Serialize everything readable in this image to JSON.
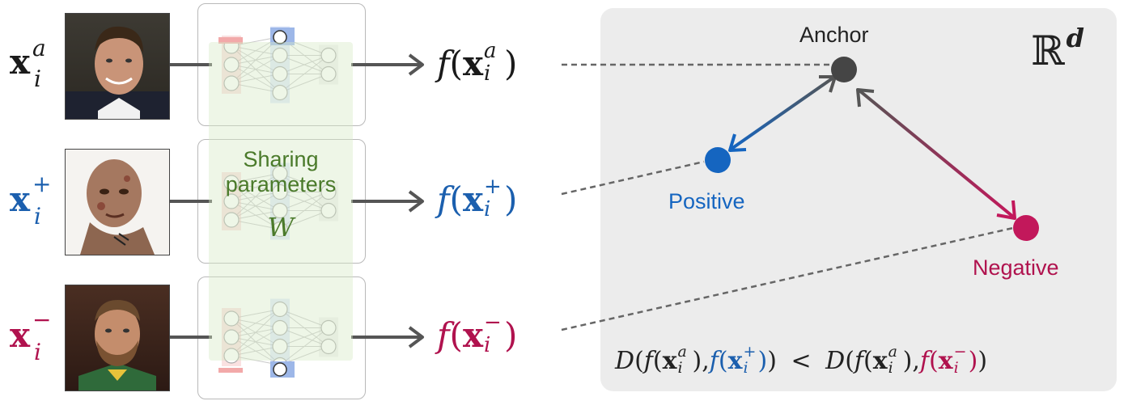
{
  "colors": {
    "anchor": "#1a1a1a",
    "positive": "#1b5fae",
    "negative": "#b0124e",
    "sharing": "#4a7a2a",
    "anchor_point": "#454545",
    "positive_point": "#1565c0",
    "negative_point": "#c2185b"
  },
  "inputs": {
    "anchor": {
      "base": "x",
      "sup": "a",
      "sub": "i"
    },
    "positive": {
      "base": "x",
      "sup": "+",
      "sub": "i"
    },
    "negative": {
      "base": "x",
      "sup": "−",
      "sub": "i"
    }
  },
  "photos": {
    "anchor": "photo-of-smiling-man-anchor",
    "positive": "photo-of-scarred-face-positive",
    "negative": "photo-of-bearded-man-negative"
  },
  "network": {
    "sharing_line1": "Sharing",
    "sharing_line2": "parameters",
    "weight_symbol": "W"
  },
  "outputs": {
    "func": "f",
    "anchor": {
      "base": "x",
      "sup": "a",
      "sub": "i"
    },
    "positive": {
      "base": "x",
      "sup": "+",
      "sub": "i"
    },
    "negative": {
      "base": "x",
      "sup": "−",
      "sub": "i"
    }
  },
  "embedding_space": {
    "space_symbol": "ℝ",
    "space_dim": "d",
    "anchor_label": "Anchor",
    "positive_label": "Positive",
    "negative_label": "Negative"
  },
  "inequality": {
    "distance": "D",
    "less_than": "<"
  }
}
